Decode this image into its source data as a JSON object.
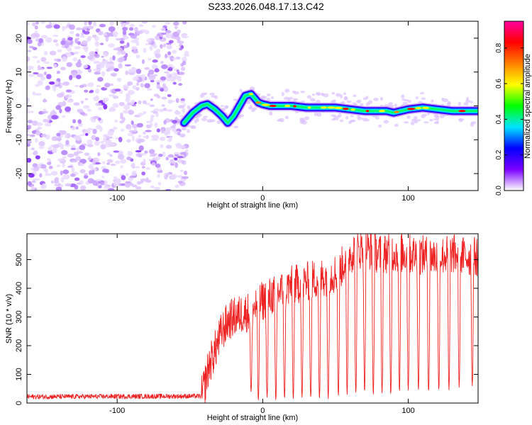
{
  "title": "S233.2026.048.17.13.C42",
  "chart_data": [
    {
      "type": "heatmap",
      "panel": "top",
      "xlabel": "Height of straight line (km)",
      "ylabel": "Frequency (Hz)",
      "xlim": [
        -162,
        148
      ],
      "ylim": [
        -25,
        25
      ],
      "xticks": [
        -100,
        0,
        100
      ],
      "yticks": [
        -20,
        -10,
        0,
        10,
        20
      ],
      "xtick_labels": [
        "-100",
        "0",
        "100"
      ],
      "ytick_labels": [
        "-20",
        "-10",
        "0",
        "10",
        "20"
      ],
      "noise_region_x": [
        -162,
        -52
      ],
      "ridge": {
        "x": [
          -54,
          -48,
          -42,
          -38,
          -33,
          -28,
          -24,
          -20,
          -16,
          -12,
          -8,
          -5,
          -3,
          0,
          5,
          10,
          20,
          30,
          40,
          50,
          60,
          70,
          80,
          85,
          90,
          100,
          110,
          120,
          130,
          140,
          148
        ],
        "y": [
          -5,
          -2,
          0,
          0.5,
          -1,
          -3,
          -5,
          -3,
          0,
          3,
          3.5,
          2,
          1,
          0.5,
          0,
          0,
          0,
          -0.5,
          -0.5,
          -0.5,
          -1,
          -1.5,
          -1.5,
          -1.5,
          -2,
          -1,
          -0.5,
          -1,
          -1.5,
          -1.5,
          -1.5
        ]
      },
      "colorbar": {
        "label": "Normalized spectral amplitude",
        "ticks": [
          0.0,
          0.2,
          0.4,
          0.6,
          0.8
        ],
        "tick_labels": [
          "0.0",
          "0.2",
          "0.4",
          "0.6",
          "0.8"
        ],
        "range": [
          0,
          0.95
        ],
        "colors": [
          "#ffffff",
          "#7a00ff",
          "#0000ff",
          "#00e5ff",
          "#00ff00",
          "#ffff00",
          "#ff8000",
          "#ff0000",
          "#ff00a0"
        ]
      }
    },
    {
      "type": "line",
      "panel": "bottom",
      "xlabel": "Height of straight line (km)",
      "ylabel": "SNR (10 * v/v)",
      "xlim": [
        -162,
        148
      ],
      "ylim": [
        0,
        590
      ],
      "xticks": [
        -100,
        0,
        100
      ],
      "yticks": [
        0,
        100,
        200,
        300,
        400,
        500
      ],
      "xtick_labels": [
        "-100",
        "0",
        "100"
      ],
      "ytick_labels": [
        "0",
        "100",
        "200",
        "300",
        "400",
        "500"
      ],
      "color": "#ee2222",
      "envelope": {
        "x": [
          -162,
          -42,
          -40,
          -37,
          -33,
          -28,
          -23,
          -15,
          -8,
          -2,
          5,
          12,
          20,
          28,
          35,
          42,
          48,
          52,
          57,
          60,
          63,
          70,
          80,
          90,
          100,
          110,
          120,
          130,
          140,
          148
        ],
        "y": [
          22,
          24,
          60,
          130,
          180,
          250,
          290,
          310,
          320,
          350,
          370,
          390,
          410,
          420,
          430,
          440,
          450,
          455,
          500,
          520,
          530,
          540,
          520,
          525,
          520,
          515,
          510,
          520,
          510,
          510
        ]
      },
      "noise_amplitude_low": 14,
      "noise_amplitude_high": 70,
      "dropouts": [
        {
          "x": -8,
          "y": 40
        },
        {
          "x": -3,
          "y": 10
        },
        {
          "x": 3,
          "y": 20
        },
        {
          "x": 9,
          "y": 10
        },
        {
          "x": 15,
          "y": 15
        },
        {
          "x": 21,
          "y": 15
        },
        {
          "x": 27,
          "y": 20
        },
        {
          "x": 33,
          "y": 20
        },
        {
          "x": 39,
          "y": 15
        },
        {
          "x": 45,
          "y": 15
        },
        {
          "x": 52,
          "y": 25
        },
        {
          "x": 58,
          "y": 30
        },
        {
          "x": 64,
          "y": 35
        },
        {
          "x": 70,
          "y": 40
        },
        {
          "x": 76,
          "y": 30
        },
        {
          "x": 82,
          "y": 35
        },
        {
          "x": 88,
          "y": 30
        },
        {
          "x": 94,
          "y": 40
        },
        {
          "x": 100,
          "y": 45
        },
        {
          "x": 107,
          "y": 45
        },
        {
          "x": 114,
          "y": 40
        },
        {
          "x": 121,
          "y": 45
        },
        {
          "x": 128,
          "y": 45
        },
        {
          "x": 135,
          "y": 55
        },
        {
          "x": 144,
          "y": 60
        }
      ]
    }
  ]
}
